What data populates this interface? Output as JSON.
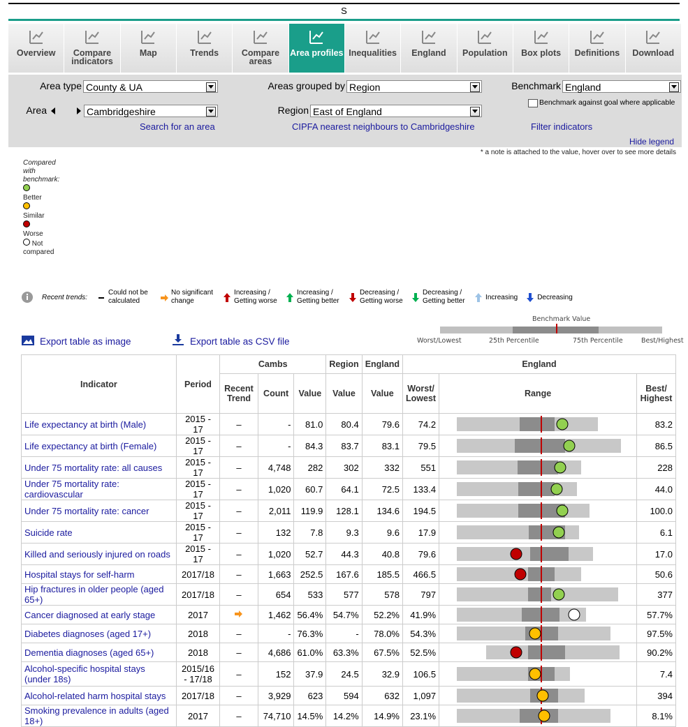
{
  "header": {
    "title": "S"
  },
  "tabs": [
    {
      "label": "Overview"
    },
    {
      "label": "Compare indicators"
    },
    {
      "label": "Map"
    },
    {
      "label": "Trends"
    },
    {
      "label": "Compare areas"
    },
    {
      "label": "Area profiles",
      "active": true
    },
    {
      "label": "Inequalities"
    },
    {
      "label": "England"
    },
    {
      "label": "Population"
    },
    {
      "label": "Box plots"
    },
    {
      "label": "Definitions"
    },
    {
      "label": "Download"
    }
  ],
  "filters": {
    "area_type_label": "Area type",
    "area_type": "County & UA",
    "grouped_label": "Areas grouped by",
    "grouped": "Region",
    "benchmark_label": "Benchmark",
    "benchmark": "England",
    "area_label": "Area",
    "area": "Cambridgeshire",
    "region_label": "Region",
    "region": "East of England",
    "goal_checkbox": "Benchmark against goal where applicable",
    "search_link": "Search for an area",
    "cipfa_link": "CIPFA nearest neighbours to Cambridgeshire",
    "filter_link": "Filter indicators",
    "hide_legend": "Hide legend",
    "note": "* a note is attached to the value, hover over to see more details"
  },
  "legend": {
    "title": "Compared with benchmark:",
    "better": "Better",
    "similar": "Similar",
    "worse": "Worse",
    "not_compared": "Not compared"
  },
  "trends": {
    "title": "Recent trends:",
    "items": [
      "Could not be calculated",
      "No significant change",
      "Increasing / Getting worse",
      "Increasing / Getting better",
      "Decreasing / Getting worse",
      "Decreasing / Getting better",
      "Increasing",
      "Decreasing"
    ]
  },
  "range_key": {
    "benchmark": "Benchmark Value",
    "worst": "Worst/Lowest",
    "p25": "25th Percentile",
    "p75": "75th Percentile",
    "best": "Best/Highest"
  },
  "export": {
    "image": "Export table as image",
    "csv": "Export table as CSV file"
  },
  "table": {
    "head": {
      "indicator": "Indicator",
      "period": "Period",
      "cambs": "Cambs",
      "region": "Region",
      "england": "England",
      "england_range": "England",
      "trend": "Recent Trend",
      "count": "Count",
      "value": "Value",
      "region_value": "Value",
      "england_value": "Value",
      "worst": "Worst/ Lowest",
      "range": "Range",
      "best": "Best/ Highest"
    },
    "rows": [
      {
        "indicator": "Life expectancy at birth (Male)",
        "period": "2015 - 17",
        "trend": "–",
        "count": "-",
        "value": "81.0",
        "region": "80.4",
        "england": "79.6",
        "worst": "74.2",
        "best": "83.2"
      },
      {
        "indicator": "Life expectancy at birth (Female)",
        "period": "2015 - 17",
        "trend": "–",
        "count": "-",
        "value": "84.3",
        "region": "83.7",
        "england": "83.1",
        "worst": "79.5",
        "best": "86.5"
      },
      {
        "indicator": "Under 75 mortality rate: all causes",
        "period": "2015 - 17",
        "trend": "–",
        "count": "4,748",
        "value": "282",
        "region": "302",
        "england": "332",
        "worst": "551",
        "best": "228"
      },
      {
        "indicator": "Under 75 mortality rate: cardiovascular",
        "period": "2015 - 17",
        "trend": "–",
        "count": "1,020",
        "value": "60.7",
        "region": "64.1",
        "england": "72.5",
        "worst": "133.4",
        "best": "44.0"
      },
      {
        "indicator": "Under 75 mortality rate: cancer",
        "period": "2015 - 17",
        "trend": "–",
        "count": "2,011",
        "value": "119.9",
        "region": "128.1",
        "england": "134.6",
        "worst": "194.5",
        "best": "100.0"
      },
      {
        "indicator": "Suicide rate",
        "period": "2015 - 17",
        "trend": "–",
        "count": "132",
        "value": "7.8",
        "region": "9.3",
        "england": "9.6",
        "worst": "17.9",
        "best": "6.1"
      },
      {
        "indicator": "Killed and seriously injured on roads",
        "period": "2015 - 17",
        "trend": "–",
        "count": "1,020",
        "value": "52.7",
        "region": "44.3",
        "england": "40.8",
        "worst": "79.6",
        "best": "17.0"
      },
      {
        "indicator": "Hospital stays for self-harm",
        "period": "2017/18",
        "trend": "–",
        "count": "1,663",
        "value": "252.5",
        "region": "167.6",
        "england": "185.5",
        "worst": "466.5",
        "best": "50.6"
      },
      {
        "indicator": "Hip fractures in older people (aged 65+)",
        "period": "2017/18",
        "trend": "–",
        "count": "654",
        "value": "533",
        "region": "577",
        "england": "578",
        "worst": "797",
        "best": "377"
      },
      {
        "indicator": "Cancer diagnosed at early stage",
        "period": "2017",
        "count": "1,462",
        "value": "56.4%",
        "region": "54.7%",
        "england": "52.2%",
        "worst": "41.9%",
        "best": "57.7%"
      },
      {
        "indicator": "Diabetes diagnoses (aged 17+)",
        "period": "2018",
        "trend": "–",
        "count": "-",
        "value": "76.3%",
        "region": "-",
        "england": "78.0%",
        "worst": "54.3%",
        "best": "97.5%"
      },
      {
        "indicator": "Dementia diagnoses (aged 65+)",
        "period": "2018",
        "trend": "–",
        "count": "4,686",
        "value": "61.0%",
        "region": "63.3%",
        "england": "67.5%",
        "worst": "52.5%",
        "best": "90.2%"
      },
      {
        "indicator": "Alcohol-specific hospital stays (under 18s)",
        "period": "2015/16 - 17/18",
        "trend": "–",
        "count": "152",
        "value": "37.9",
        "region": "24.5",
        "england": "32.9",
        "worst": "106.5",
        "best": "7.4"
      },
      {
        "indicator": "Alcohol-related harm hospital stays",
        "period": "2017/18",
        "trend": "–",
        "count": "3,929",
        "value": "623",
        "region": "594",
        "england": "632",
        "worst": "1,097",
        "best": "394"
      },
      {
        "indicator": "Smoking prevalence in adults (aged 18+)",
        "period": "2017",
        "trend": "–",
        "count": "74,710",
        "value": "14.5%",
        "region": "14.2%",
        "england": "14.9%",
        "worst": "23.1%",
        "best": "8.1%"
      }
    ]
  }
}
